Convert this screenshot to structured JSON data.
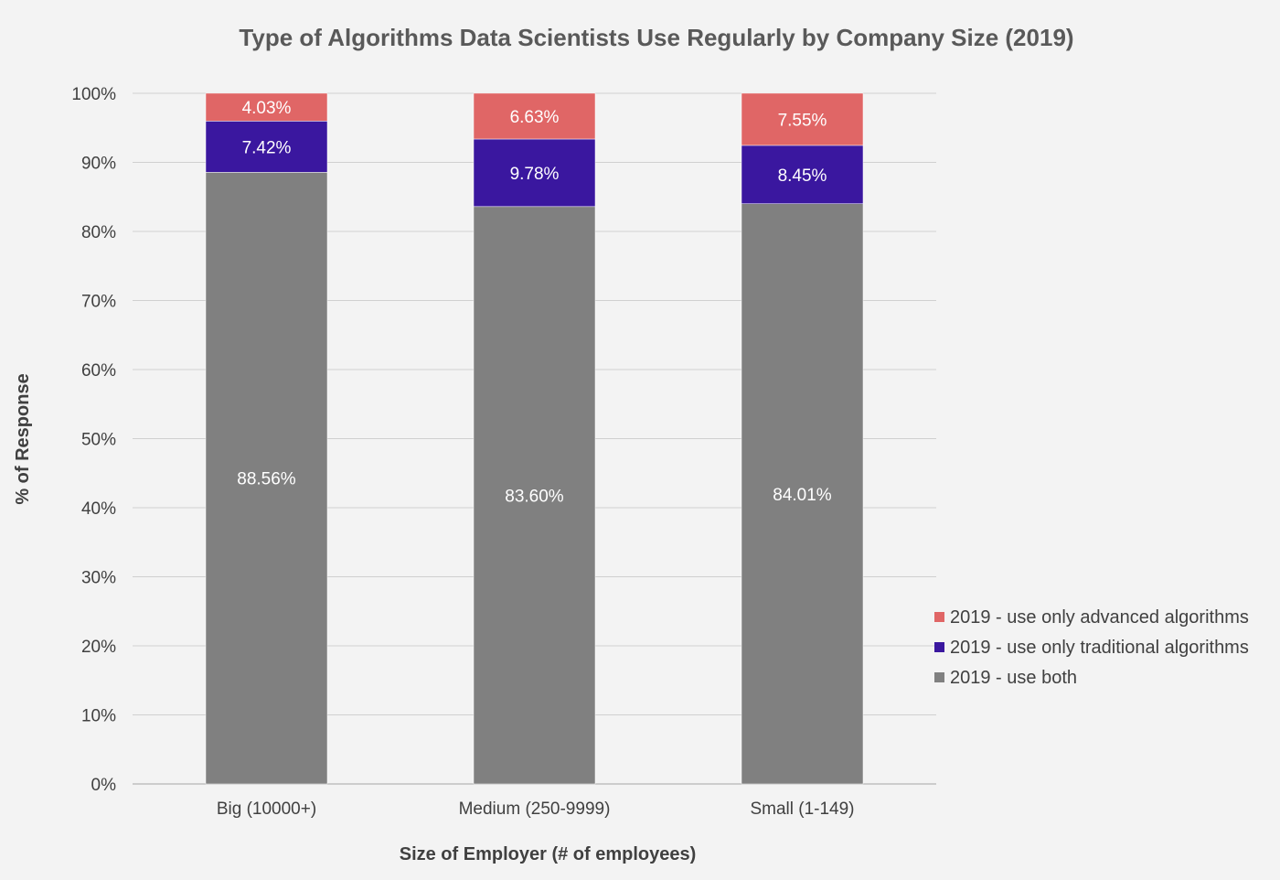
{
  "chart_data": {
    "type": "bar",
    "stacked": true,
    "title": "Type of Algorithms Data Scientists Use Regularly by Company Size (2019)",
    "xlabel": "Size of Employer (# of employees)",
    "ylabel": "% of Response",
    "ylim": [
      0,
      100
    ],
    "y_ticks": [
      "0%",
      "10%",
      "20%",
      "30%",
      "40%",
      "50%",
      "60%",
      "70%",
      "80%",
      "90%",
      "100%"
    ],
    "grid": true,
    "legend_position": "right",
    "categories": [
      "Big (10000+)",
      "Medium (250-9999)",
      "Small (1-149)"
    ],
    "series": [
      {
        "name": "2019 - use both",
        "color": "#808080",
        "values": [
          88.56,
          83.6,
          84.01
        ],
        "labels": [
          "88.56%",
          "83.60%",
          "84.01%"
        ]
      },
      {
        "name": "2019 - use only traditional algorithms",
        "color": "#3a179f",
        "values": [
          7.42,
          9.78,
          8.45
        ],
        "labels": [
          "7.42%",
          "9.78%",
          "8.45%"
        ]
      },
      {
        "name": "2019 - use only advanced algorithms",
        "color": "#e06666",
        "values": [
          4.03,
          6.63,
          7.55
        ],
        "labels": [
          "4.03%",
          "6.63%",
          "7.55%"
        ]
      }
    ],
    "legend_order": [
      "2019 - use only advanced algorithms",
      "2019 - use only traditional algorithms",
      "2019 - use both"
    ]
  }
}
